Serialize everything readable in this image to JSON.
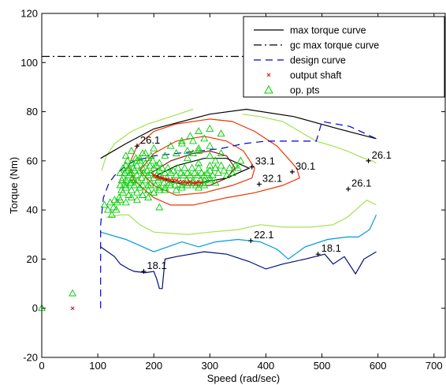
{
  "chart_data": {
    "type": "line",
    "title": "",
    "xlabel": "Speed (rad/sec)",
    "ylabel": "Torque (Nm)",
    "xlim": [
      0,
      720
    ],
    "ylim": [
      -20,
      120
    ],
    "xticks": [
      0,
      100,
      200,
      300,
      400,
      500,
      600,
      700
    ],
    "yticks": [
      -20,
      0,
      20,
      40,
      60,
      80,
      100,
      120
    ],
    "grid": false,
    "legend_position": "top-right",
    "legend": [
      {
        "label": "max torque curve",
        "style": "solid",
        "color": "#000000"
      },
      {
        "label": "gc max torque curve",
        "style": "dashdot",
        "color": "#000000"
      },
      {
        "label": "design curve",
        "style": "dashed",
        "color": "#0000cc"
      },
      {
        "label": "output shaft",
        "style": "marker-x",
        "color": "#ff0000"
      },
      {
        "label": "op. pts",
        "style": "marker-triangle",
        "color": "#00cc00"
      }
    ],
    "series": [
      {
        "id": "max_torque",
        "color": "#000000",
        "style": "solid",
        "x": [
          105,
          150,
          200,
          300,
          365,
          450,
          530,
          597
        ],
        "y": [
          61,
          67,
          73,
          79,
          81,
          78,
          73,
          69
        ]
      },
      {
        "id": "gc_max_torque",
        "color": "#000000",
        "style": "dashdot",
        "x": [
          0,
          720
        ],
        "y": [
          102.5,
          102.5
        ]
      },
      {
        "id": "design_curve",
        "color": "#0000cc",
        "style": "dashed",
        "x": [
          105,
          105,
          110,
          120,
          130,
          145,
          165,
          200,
          260,
          320,
          360,
          400,
          490,
          500,
          550,
          597
        ],
        "y": [
          0,
          34,
          45,
          51,
          54,
          57,
          60,
          62,
          63.5,
          65,
          67,
          68,
          68,
          76,
          74,
          69
        ]
      }
    ],
    "contours": [
      {
        "color": "#000e7a",
        "x": [
          105,
          130,
          140,
          155,
          165,
          185,
          200,
          205,
          210,
          215,
          220,
          240,
          290,
          330,
          370,
          400,
          430,
          470,
          505,
          520,
          540,
          560,
          575,
          597
        ],
        "y": [
          25,
          21,
          18,
          16,
          15,
          14.5,
          15,
          12,
          8,
          8,
          20,
          21,
          23,
          22,
          19,
          16,
          18,
          20,
          22,
          18,
          21,
          14,
          20,
          23
        ]
      },
      {
        "color": "#0099e0",
        "x": [
          105,
          150,
          200,
          250,
          280,
          310,
          350,
          390,
          420,
          440,
          470,
          510,
          545,
          565,
          585,
          597
        ],
        "y": [
          31,
          28,
          23,
          27,
          25,
          27,
          28,
          27,
          24,
          20,
          25,
          28,
          29,
          29,
          32,
          38
        ]
      },
      {
        "color": "#a6e050",
        "x": [
          115,
          140,
          155,
          175,
          200,
          260,
          300,
          350,
          390,
          430,
          480,
          520,
          545,
          580,
          597
        ],
        "y": [
          37,
          38,
          38,
          34,
          31,
          30,
          31,
          32,
          34,
          33,
          33,
          34,
          37,
          44,
          42
        ]
      },
      {
        "color": "#a6e050",
        "x": [
          107,
          115,
          130,
          160,
          190,
          230,
          270
        ],
        "y": [
          56,
          62,
          67,
          72,
          75,
          78,
          81
        ]
      },
      {
        "color": "#a6e050",
        "x": [
          358,
          390,
          430,
          460,
          490,
          520,
          545,
          575,
          590,
          597
        ],
        "y": [
          79,
          78,
          76,
          72,
          68,
          66,
          64,
          61,
          60,
          59
        ]
      },
      {
        "color": "#ee3300",
        "x": [
          155,
          170,
          200,
          240,
          300,
          340,
          380,
          420,
          455,
          460,
          430,
          380,
          330,
          270,
          230,
          200,
          165,
          155
        ],
        "y": [
          58,
          66,
          72,
          75,
          77,
          76,
          72,
          66,
          57,
          53,
          50,
          47,
          45,
          42,
          42,
          45,
          52,
          58
        ]
      },
      {
        "color": "#ee3300",
        "x": [
          175,
          200,
          240,
          290,
          330,
          360,
          380,
          375,
          340,
          290,
          240,
          200,
          175
        ],
        "y": [
          56,
          63,
          68,
          70,
          68,
          64,
          57,
          53,
          50,
          47,
          46,
          50,
          56
        ]
      },
      {
        "color": "#8b1a1a",
        "x": [
          195,
          230,
          270,
          300,
          330,
          345,
          330,
          300,
          260,
          220,
          195
        ],
        "y": [
          55,
          60,
          63,
          64,
          62,
          57,
          53,
          50,
          50,
          52,
          55
        ]
      },
      {
        "color": "#000000",
        "x": [
          205,
          240,
          290,
          330,
          370,
          330,
          280,
          240,
          205
        ],
        "y": [
          54,
          58,
          61,
          61,
          57,
          53,
          51,
          51,
          54
        ]
      }
    ],
    "output_shaft_points": {
      "color": "#ff0000",
      "x": [
        55,
        200,
        205,
        210,
        215,
        220,
        225,
        230,
        235,
        240,
        245,
        250,
        255,
        260,
        265,
        270,
        275,
        280,
        285
      ],
      "y": [
        0,
        54,
        53.5,
        53,
        53,
        52.5,
        52.5,
        52,
        52,
        52,
        51.5,
        51.5,
        51.5,
        51,
        51.5,
        51,
        51,
        51.5,
        51
      ]
    },
    "op_points": {
      "color": "#00cc00",
      "x": [
        0,
        55,
        112,
        118,
        122,
        125,
        128,
        130,
        133,
        135,
        138,
        140,
        140,
        142,
        143,
        145,
        145,
        147,
        148,
        150,
        150,
        152,
        153,
        155,
        156,
        158,
        160,
        160,
        162,
        163,
        165,
        166,
        168,
        170,
        170,
        172,
        175,
        175,
        178,
        180,
        180,
        182,
        185,
        185,
        188,
        190,
        190,
        193,
        195,
        195,
        198,
        200,
        200,
        203,
        205,
        205,
        208,
        210,
        210,
        213,
        215,
        218,
        220,
        220,
        223,
        225,
        228,
        230,
        232,
        235,
        238,
        240,
        243,
        245,
        248,
        250,
        253,
        255,
        258,
        260,
        262,
        265,
        268,
        270,
        273,
        275,
        278,
        280,
        283,
        285,
        288,
        290,
        295,
        300,
        305,
        310,
        315,
        320,
        325,
        330,
        335,
        340,
        345,
        350,
        355,
        145,
        150,
        155,
        160,
        165,
        170,
        175,
        180,
        190,
        200,
        210,
        220,
        230,
        240,
        250,
        260,
        270,
        280,
        290,
        300,
        310,
        150,
        160,
        170,
        180,
        190,
        200,
        210,
        220,
        230,
        240,
        250,
        260,
        270,
        280,
        290,
        300,
        140,
        150,
        160,
        170,
        180,
        190,
        200,
        210,
        250,
        265,
        280,
        300,
        320,
        175,
        185,
        195,
        260,
        270,
        280,
        300,
        310,
        320,
        150,
        160,
        175,
        190,
        280,
        300,
        310,
        290,
        300
      ],
      "y": [
        0,
        6,
        42,
        40,
        43,
        38,
        41,
        44,
        40,
        43,
        45,
        50,
        55,
        48,
        52,
        57,
        53,
        50,
        55,
        58,
        52,
        56,
        60,
        54,
        57,
        51,
        55,
        59,
        53,
        57,
        52,
        56,
        61,
        54,
        58,
        52,
        56,
        60,
        53,
        57,
        50,
        55,
        59,
        52,
        56,
        50,
        54,
        58,
        51,
        55,
        60,
        53,
        57,
        50,
        54,
        58,
        52,
        56,
        48,
        53,
        57,
        51,
        55,
        49,
        53,
        57,
        51,
        55,
        52,
        56,
        50,
        54,
        57,
        52,
        55,
        50,
        54,
        57,
        52,
        55,
        51,
        54,
        57,
        52,
        55,
        50,
        54,
        57,
        52,
        55,
        51,
        54,
        55,
        56,
        54,
        57,
        55,
        58,
        56,
        54,
        57,
        55,
        58,
        57,
        60,
        47,
        49,
        46,
        48,
        50,
        47,
        49,
        46,
        48,
        47,
        49,
        48,
        50,
        48,
        49,
        50,
        51,
        49,
        50,
        52,
        51,
        62,
        64,
        60,
        63,
        61,
        65,
        59,
        62,
        66,
        63,
        67,
        64,
        68,
        65,
        69,
        66,
        44,
        43,
        45,
        44,
        46,
        45,
        47,
        41,
        68,
        70,
        72,
        73,
        71,
        61,
        63,
        62,
        61,
        63,
        64,
        62,
        60,
        63,
        50,
        51,
        49,
        48,
        59,
        58,
        57,
        52,
        53
      ]
    },
    "contour_labels": [
      {
        "text": "26.1",
        "x": 170,
        "y": 66
      },
      {
        "text": "33.1",
        "x": 375,
        "y": 57.5
      },
      {
        "text": "30.1",
        "x": 447,
        "y": 55.5
      },
      {
        "text": "32.1",
        "x": 388,
        "y": 50.5
      },
      {
        "text": "26.1",
        "x": 583,
        "y": 60
      },
      {
        "text": "26.1",
        "x": 547,
        "y": 48.5
      },
      {
        "text": "22.1",
        "x": 373,
        "y": 27.5
      },
      {
        "text": "18.1",
        "x": 493,
        "y": 22
      },
      {
        "text": "18.1",
        "x": 182,
        "y": 15
      }
    ]
  }
}
